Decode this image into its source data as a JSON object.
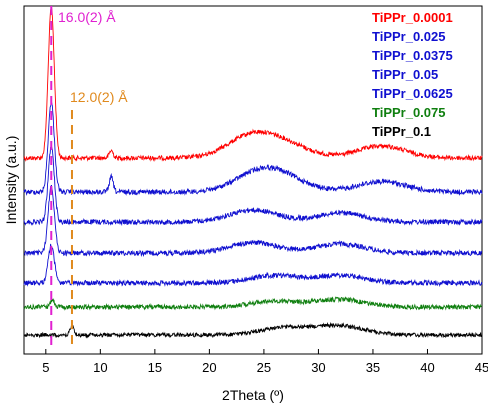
{
  "chart_data": {
    "type": "line",
    "xlabel": "2Theta (º)",
    "ylabel": "Intensity (a.u.)",
    "xlim": [
      3,
      45
    ],
    "xticks": [
      5,
      10,
      15,
      20,
      25,
      30,
      35,
      40,
      45
    ],
    "xtick_labels": [
      "5",
      "10",
      "15",
      "20",
      "25",
      "30",
      "35",
      "40",
      "45"
    ],
    "y_scale": "arbitrary, stacked offsets",
    "grid": false,
    "legend_placement": "top-right",
    "series": [
      {
        "name": "TiPPr_0.0001",
        "color": "#ff0000",
        "peaks": [
          {
            "x": 5.5,
            "height": 1.0
          },
          {
            "x": 11.0,
            "height": 0.05
          },
          {
            "x": 23.8,
            "height": 0.14
          },
          {
            "x": 27.0,
            "height": 0.08
          },
          {
            "x": 35.8,
            "height": 0.08
          }
        ]
      },
      {
        "name": "TiPPr_0.025",
        "color": "#1010d0",
        "peaks": [
          {
            "x": 5.5,
            "height": 0.6
          },
          {
            "x": 11.0,
            "height": 0.1
          },
          {
            "x": 24.5,
            "height": 0.12
          },
          {
            "x": 27.0,
            "height": 0.07
          },
          {
            "x": 35.8,
            "height": 0.07
          }
        ]
      },
      {
        "name": "TiPPr_0.0375",
        "color": "#1010d0",
        "peaks": [
          {
            "x": 5.5,
            "height": 0.5
          },
          {
            "x": 24.0,
            "height": 0.08
          },
          {
            "x": 32.0,
            "height": 0.06
          }
        ]
      },
      {
        "name": "TiPPr_0.05",
        "color": "#1010d0",
        "peaks": [
          {
            "x": 5.5,
            "height": 0.45
          },
          {
            "x": 24.0,
            "height": 0.07
          },
          {
            "x": 32.0,
            "height": 0.06
          }
        ]
      },
      {
        "name": "TiPPr_0.0625",
        "color": "#1010d0",
        "peaks": [
          {
            "x": 5.5,
            "height": 0.25
          },
          {
            "x": 26.0,
            "height": 0.05
          },
          {
            "x": 32.0,
            "height": 0.05
          }
        ]
      },
      {
        "name": "TiPPr_0.075",
        "color": "#0f7f0f",
        "peaks": [
          {
            "x": 5.6,
            "height": 0.05
          },
          {
            "x": 26.0,
            "height": 0.04
          },
          {
            "x": 32.0,
            "height": 0.05
          }
        ]
      },
      {
        "name": "TiPPr_0.1",
        "color": "#000000",
        "peaks": [
          {
            "x": 7.4,
            "height": 0.06
          },
          {
            "x": 27.0,
            "height": 0.05
          },
          {
            "x": 32.0,
            "height": 0.06
          }
        ]
      }
    ],
    "annotations": [
      {
        "text": "16.0(2) Å",
        "x": 5.5,
        "color": "#e020d0",
        "style": "dashed-vertical"
      },
      {
        "text": "12.0(2) Å",
        "x": 7.4,
        "color": "#e08a1e",
        "style": "dashed-vertical"
      }
    ]
  }
}
